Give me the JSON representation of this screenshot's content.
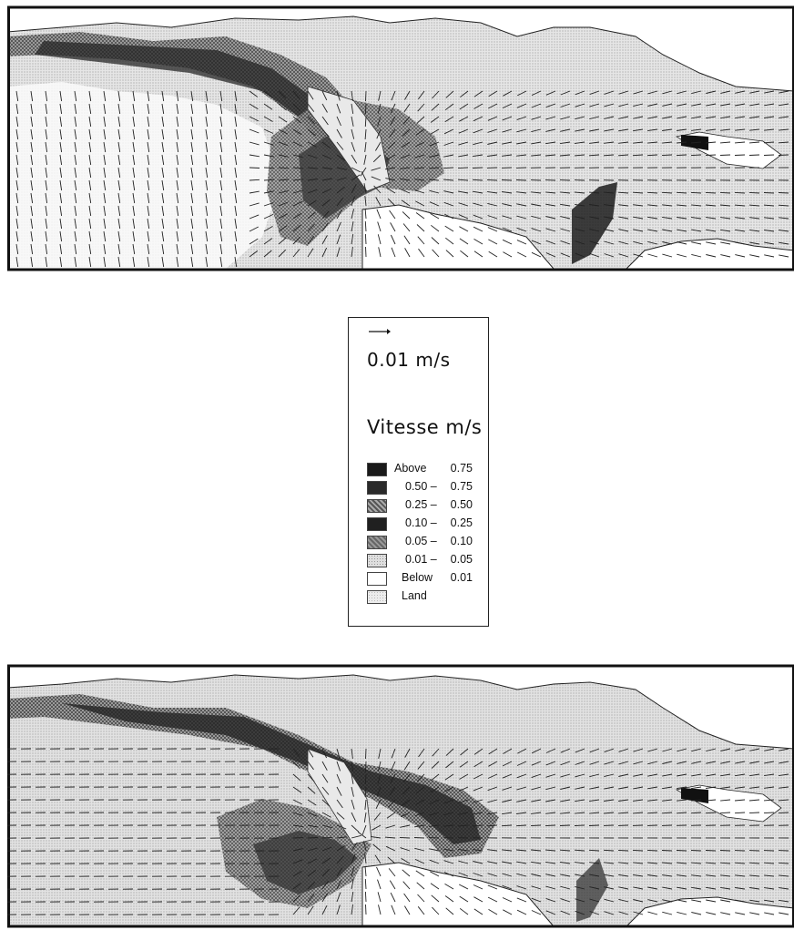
{
  "legend": {
    "scale_label": "0.01 m/s",
    "title": "Vitesse m/s",
    "classes": [
      {
        "low": "Above",
        "high": "0.75",
        "color": "#1a1a1a",
        "pattern": "dots-light"
      },
      {
        "low": "0.50 –",
        "high": "0.75",
        "color": "#2a2a2a",
        "pattern": "solid"
      },
      {
        "low": "0.25 –",
        "high": "0.50",
        "color": "#8a8a8a",
        "pattern": "checker"
      },
      {
        "low": "0.10 –",
        "high": "0.25",
        "color": "#202020",
        "pattern": "solid"
      },
      {
        "low": "0.05 –",
        "high": "0.10",
        "color": "#7d7d7d",
        "pattern": "checker"
      },
      {
        "low": "0.01 –",
        "high": "0.05",
        "color": "#cfcfcf",
        "pattern": "dots"
      },
      {
        "low": "Below",
        "high": "0.01",
        "color": "#ffffff",
        "pattern": "none"
      },
      {
        "low": "Land",
        "high": "",
        "color": "#e2e2e2",
        "pattern": "dots"
      }
    ]
  },
  "maps": [
    {
      "id": "top",
      "vector_field": "radial-converging",
      "ocean_color": "#d7d7d7",
      "land_color": "#ffffff"
    },
    {
      "id": "bottom",
      "vector_field": "westward-flow",
      "ocean_color": "#d7d7d7",
      "land_color": "#ffffff"
    }
  ]
}
